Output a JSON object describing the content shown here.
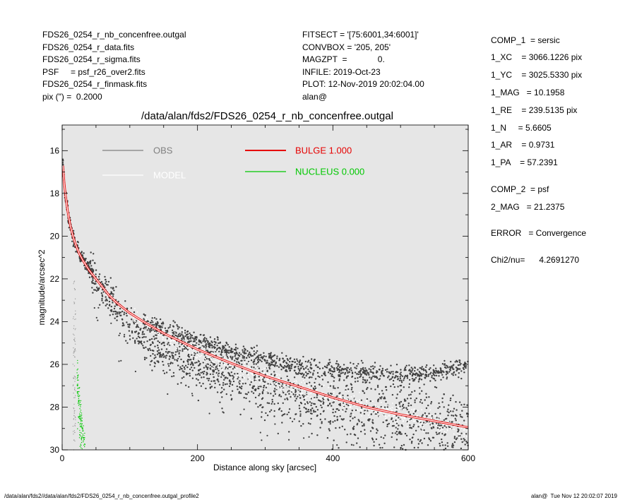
{
  "header": {
    "left": [
      "FDS26_0254_r_nb_concenfree.outgal",
      "FDS26_0254_r_data.fits",
      "FDS26_0254_r_sigma.fits",
      "PSF     = psf_r26_over2.fits",
      "FDS26_0254_r_finmask.fits",
      "pix (\") =  0.2000"
    ],
    "middle": [
      "FITSECT = '[75:6001,34:6001]'",
      "CONVBOX = '205, 205'",
      "MAGZPT  =             0.",
      "INFILE: 2019-Oct-23",
      "PLOT: 12-Nov-2019 20:02:04.00",
      "alan@"
    ]
  },
  "params": [
    "COMP_1  = sersic",
    "1_XC    = 3066.1226 pix",
    "1_YC    = 3025.5330 pix",
    "1_MAG   = 10.1958",
    "1_RE    = 239.5135 pix",
    "1_N     = 5.6605",
    "1_AR    = 0.9731",
    "1_PA    = 57.2391",
    "COMP_2  = psf",
    "2_MAG   = 21.2375",
    "ERROR   = Convergence",
    "Chi2/nu=      4.2691270"
  ],
  "footer": {
    "left": "/data/alan/fds2//data/alan/fds2/FDS26_0254_r_nb_concenfree.outgal_profile2",
    "right": "alan@  Tue Nov 12 20:02:07 2019"
  },
  "colors": {
    "panel": "#e6e6e6",
    "obs": "#404040",
    "obs_legend": "#808080",
    "model": "#ffffff",
    "bulge": "#e60000",
    "nucleus": "#00c800"
  },
  "chart_data": {
    "type": "scatter",
    "title": "/data/alan/fds2/FDS26_0254_r_nb_concenfree.outgal",
    "xlabel": "Distance along sky [arcsec]",
    "ylabel": "magnitude/arcsec^2",
    "xlim": [
      0,
      600
    ],
    "ylim": [
      30.0,
      14.8
    ],
    "y_inverted": true,
    "xticks": [
      0,
      200,
      400,
      600
    ],
    "yticks": [
      16,
      18,
      20,
      22,
      24,
      26,
      28,
      30
    ],
    "grid": false,
    "legend": [
      {
        "label": "OBS",
        "color": "#808080"
      },
      {
        "label": "MODEL",
        "color": "#ffffff"
      },
      {
        "label": "BULGE  1.000",
        "color": "#e60000"
      },
      {
        "label": "NUCLEUS  0.000",
        "color": "#00c800"
      }
    ],
    "series": [
      {
        "name": "BULGE  1.000",
        "kind": "line",
        "x": [
          1,
          3,
          5,
          8,
          12,
          16,
          20,
          25,
          30,
          40,
          50,
          60,
          70,
          80,
          100,
          120,
          150,
          200,
          250,
          300,
          350,
          400,
          450,
          500,
          550,
          600
        ],
        "y": [
          16.7,
          17.5,
          18.1,
          18.8,
          19.5,
          20.0,
          20.4,
          20.8,
          21.1,
          21.6,
          22.0,
          22.4,
          22.8,
          23.1,
          23.6,
          24.0,
          24.55,
          25.3,
          25.95,
          26.55,
          27.05,
          27.55,
          28.0,
          28.35,
          28.65,
          28.95
        ]
      },
      {
        "name": "OBS",
        "kind": "scatter",
        "branches": [
          {
            "x": [
              40,
              60,
              80,
              100,
              120,
              150,
              200,
              250,
              300,
              350,
              400,
              450,
              500,
              550,
              600
            ],
            "y": [
              21.5,
              22.4,
              23.3,
              24.2,
              24.8,
              25.3,
              26.0,
              26.6,
              27.1,
              27.5,
              27.9,
              28.3,
              28.6,
              29.0,
              29.3
            ]
          },
          {
            "x": [
              120,
              150,
              200,
              250,
              300,
              350,
              400,
              450,
              500,
              550,
              600
            ],
            "y": [
              24.1,
              24.3,
              24.9,
              25.4,
              25.8,
              26.1,
              26.3,
              26.4,
              26.5,
              26.4,
              26.1
            ]
          }
        ]
      },
      {
        "name": "MODEL",
        "kind": "scatter",
        "x": [
          100,
          200,
          300,
          400,
          500,
          600
        ],
        "y": [
          23.7,
          25.5,
          26.7,
          27.6,
          28.4,
          29.1
        ]
      },
      {
        "name": "NUCLEUS  0.000",
        "kind": "scatter",
        "x": [
          22,
          26,
          30,
          34
        ],
        "y": [
          27.0,
          28.5,
          29.5,
          30.0
        ]
      }
    ]
  }
}
